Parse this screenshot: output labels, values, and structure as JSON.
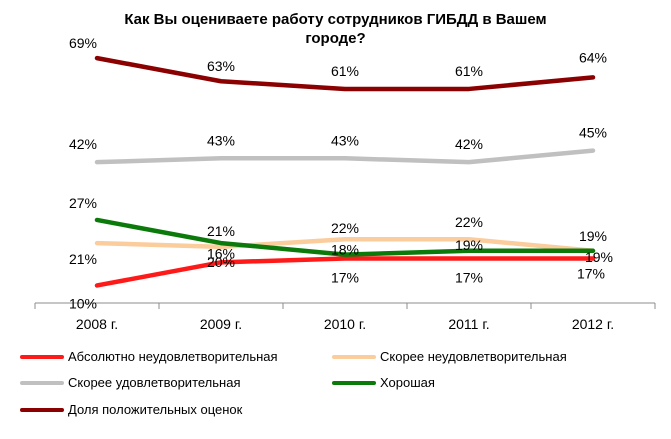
{
  "chart_data": {
    "type": "line",
    "title_lines": [
      "Как Вы оцениваете работу сотрудников ГИБДД в Вашем",
      "городе?"
    ],
    "categories": [
      "2008 г.",
      "2009 г.",
      "2010 г.",
      "2011 г.",
      "2012 г."
    ],
    "ylim": [
      0,
      75
    ],
    "grid": false,
    "legend_position": "bottom",
    "series": [
      {
        "name": "Абсолютно неудовлетворительная",
        "color": "#ff1a1a",
        "values": [
          10,
          16,
          17,
          17,
          17
        ],
        "labels": [
          "10%",
          "16%",
          "17%",
          "17%",
          "17%"
        ]
      },
      {
        "name": "Скорее неудовлетворительная",
        "color": "#fbcc9c",
        "values": [
          21,
          20,
          22,
          22,
          19
        ],
        "labels": [
          "21%",
          "20%",
          "22%",
          "22%",
          "19%"
        ]
      },
      {
        "name": "Скорее удовлетворительная",
        "color": "#c0c0c0",
        "values": [
          42,
          43,
          43,
          42,
          45
        ],
        "labels": [
          "42%",
          "43%",
          "43%",
          "42%",
          "45%"
        ]
      },
      {
        "name": "Хорошая",
        "color": "#0b7a0b",
        "values": [
          27,
          21,
          18,
          19,
          19
        ],
        "labels": [
          "27%",
          "21%",
          "18%",
          "19%",
          "19%"
        ]
      },
      {
        "name": "Доля положительных оценок",
        "color": "#8b0000",
        "values": [
          69,
          63,
          61,
          61,
          64
        ],
        "labels": [
          "69%",
          "63%",
          "61%",
          "61%",
          "64%"
        ]
      }
    ]
  }
}
